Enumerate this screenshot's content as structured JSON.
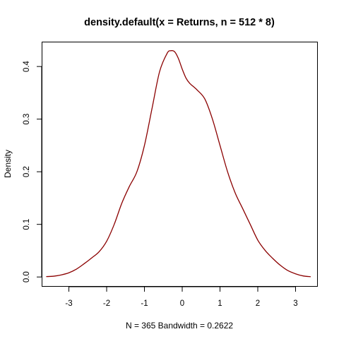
{
  "chart_data": {
    "type": "line",
    "title": "density.default(x = Returns, n = 512 * 8)",
    "xlabel": "N = 365   Bandwidth = 0.2622",
    "ylabel": "Density",
    "xlim": [
      -3.72,
      3.57
    ],
    "ylim": [
      -0.0172,
      0.4472
    ],
    "x_ticks": [
      -3,
      -2,
      -1,
      0,
      1,
      2,
      3
    ],
    "y_ticks": [
      0.0,
      0.1,
      0.2,
      0.3,
      0.4
    ],
    "x_tick_labels": [
      "-3",
      "-2",
      "-1",
      "0",
      "1",
      "2",
      "3"
    ],
    "y_tick_labels": [
      "0.0",
      "0.1",
      "0.2",
      "0.3",
      "0.4"
    ],
    "grid": false,
    "legend": "none",
    "series": [
      {
        "color": "#8b0000",
        "line_width": 1.3,
        "x": [
          -3.6,
          -3.4,
          -3.2,
          -3.0,
          -2.8,
          -2.6,
          -2.4,
          -2.2,
          -2.0,
          -1.8,
          -1.6,
          -1.4,
          -1.2,
          -1.0,
          -0.8,
          -0.6,
          -0.4,
          -0.3,
          -0.2,
          -0.1,
          0.0,
          0.1,
          0.2,
          0.4,
          0.6,
          0.8,
          1.0,
          1.2,
          1.4,
          1.6,
          1.8,
          2.0,
          2.2,
          2.4,
          2.6,
          2.8,
          3.0,
          3.2,
          3.4
        ],
        "y": [
          0.0007,
          0.0015,
          0.004,
          0.008,
          0.015,
          0.025,
          0.036,
          0.048,
          0.068,
          0.1,
          0.14,
          0.172,
          0.2,
          0.25,
          0.32,
          0.39,
          0.425,
          0.43,
          0.428,
          0.415,
          0.395,
          0.378,
          0.368,
          0.355,
          0.338,
          0.3,
          0.25,
          0.2,
          0.16,
          0.13,
          0.1,
          0.07,
          0.05,
          0.035,
          0.022,
          0.012,
          0.006,
          0.002,
          0.0005
        ]
      }
    ]
  }
}
